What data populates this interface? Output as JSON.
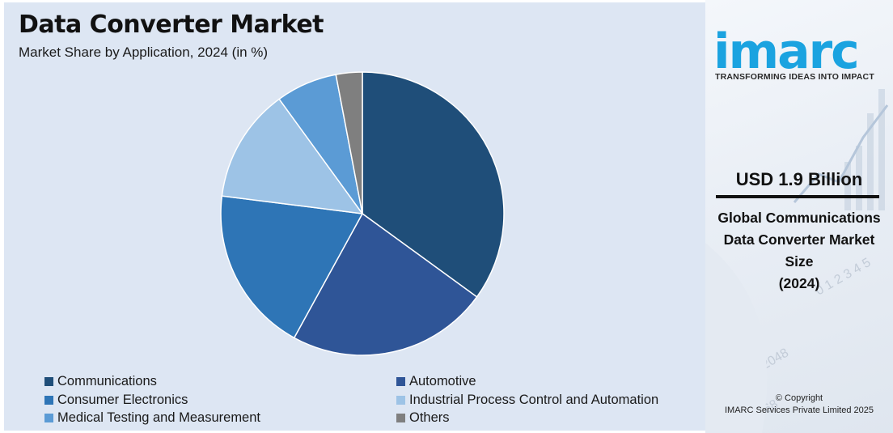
{
  "chart": {
    "title": "Data Converter Market",
    "subtitle": "Market Share by Application, 2024 (in %)"
  },
  "chart_data": {
    "type": "pie",
    "title": "Data Converter Market",
    "subtitle": "Market Share by Application, 2024 (in %)",
    "start": "12 o'clock",
    "direction": "clockwise",
    "legend_position": "bottom",
    "slices": [
      {
        "label": "Communications",
        "value": 35,
        "color": "#1f4e79"
      },
      {
        "label": "Automotive",
        "value": 23,
        "color": "#2f5597"
      },
      {
        "label": "Consumer Electronics",
        "value": 19,
        "color": "#2e75b6"
      },
      {
        "label": "Industrial Process Control and Automation",
        "value": 13,
        "color": "#9dc3e6"
      },
      {
        "label": "Medical Testing and Measurement",
        "value": 7,
        "color": "#5b9bd5"
      },
      {
        "label": "Others",
        "value": 3,
        "color": "#7f7f7f"
      }
    ]
  },
  "legend": {
    "items": [
      {
        "label": "Communications",
        "color": "#1f4e79"
      },
      {
        "label": "Automotive",
        "color": "#2f5597"
      },
      {
        "label": "Consumer Electronics",
        "color": "#2e75b6"
      },
      {
        "label": "Industrial Process Control and Automation",
        "color": "#9dc3e6"
      },
      {
        "label": "Medical Testing and Measurement",
        "color": "#5b9bd5"
      },
      {
        "label": "Others",
        "color": "#7f7f7f"
      }
    ]
  },
  "sidebar": {
    "logo_text": "imarc",
    "tagline": "TRANSFORMING IDEAS INTO IMPACT",
    "value": "USD 1.9 Billion",
    "desc_lines": [
      "Global Communications",
      "Data Converter Market",
      "Size",
      "(2024)"
    ],
    "copyright_line1": "© Copyright",
    "copyright_line2": "IMARC Services Private Limited 2025",
    "brand_color": "#1ba3e0"
  }
}
